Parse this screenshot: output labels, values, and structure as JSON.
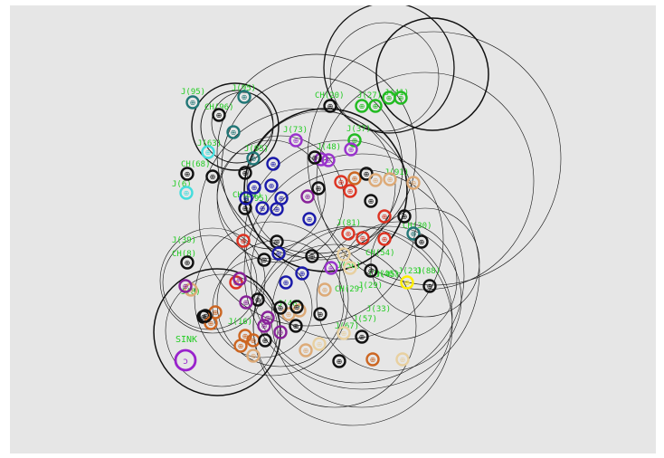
{
  "colors": {
    "background": "#e6e6e6",
    "range": "#111111",
    "label_green": "#22cc22",
    "black": "#111111",
    "green": "#22bb22",
    "teal": "#227777",
    "cyan": "#44dddd",
    "blue": "#1a1aaa",
    "purple": "#882299",
    "violet": "#9933cc",
    "red": "#dd3322",
    "orange": "#cc6622",
    "tan": "#ddaa77",
    "beige": "#e8d0a0",
    "yellow": "#ffee00",
    "sink": "#9922cc"
  },
  "sink": {
    "label": "SINK",
    "glyph": "ↄ"
  },
  "labels": [
    {
      "text": "J(95)"
    },
    {
      "text": "J(95)"
    },
    {
      "text": "CH(96)"
    },
    {
      "text": "J(63)"
    },
    {
      "text": "J(95)"
    },
    {
      "text": "CH(68)"
    },
    {
      "text": "J(6)"
    },
    {
      "text": "J(73)"
    },
    {
      "text": "J(37)"
    },
    {
      "text": "CH(20)"
    },
    {
      "text": "J(27)"
    },
    {
      "text": "J(41)"
    },
    {
      "text": "J(48)"
    },
    {
      "text": "J(81)"
    },
    {
      "text": "J(95)"
    },
    {
      "text": "CH(94)"
    },
    {
      "text": "J(39)"
    },
    {
      "text": "CH(8)"
    },
    {
      "text": "J(8)"
    },
    {
      "text": "J(50)"
    },
    {
      "text": "CH(29)"
    },
    {
      "text": "J(29)"
    },
    {
      "text": "CH(54)"
    },
    {
      "text": "CH(30)"
    },
    {
      "text": "CH(46)"
    },
    {
      "text": "J(91)"
    },
    {
      "text": "J(48)"
    },
    {
      "text": "J(16)"
    },
    {
      "text": "J(67)"
    },
    {
      "text": "J(57)"
    },
    {
      "text": "J(33)"
    },
    {
      "text": "J(45)"
    },
    {
      "text": "J(23)"
    },
    {
      "text": "J(88)"
    }
  ],
  "nodes": [
    {
      "color": "teal",
      "glyph": "⊕"
    },
    {
      "color": "teal",
      "glyph": "⊕"
    },
    {
      "color": "black",
      "glyph": "⊕"
    },
    {
      "color": "teal",
      "glyph": "⊕"
    },
    {
      "color": "cyan",
      "glyph": "⊕"
    },
    {
      "color": "black",
      "glyph": "⊕"
    },
    {
      "color": "cyan",
      "glyph": "⊕"
    },
    {
      "color": "black",
      "glyph": "⊕"
    },
    {
      "color": "green",
      "glyph": "⊕"
    },
    {
      "color": "green",
      "glyph": "⊕"
    },
    {
      "color": "green",
      "glyph": "⊕"
    },
    {
      "color": "green",
      "glyph": "⊕"
    },
    {
      "color": "black",
      "glyph": "⊕"
    },
    {
      "color": "violet",
      "glyph": "⊕"
    },
    {
      "color": "green",
      "glyph": "⊕"
    },
    {
      "color": "violet",
      "glyph": "⊕"
    },
    {
      "color": "violet",
      "glyph": "⊕"
    },
    {
      "color": "violet",
      "glyph": "⊕"
    },
    {
      "color": "black",
      "glyph": "⊕"
    },
    {
      "color": "teal",
      "glyph": "⊕"
    },
    {
      "color": "blue",
      "glyph": "⊕"
    },
    {
      "color": "black",
      "glyph": "⊕"
    },
    {
      "color": "blue",
      "glyph": "⊕"
    },
    {
      "color": "blue",
      "glyph": "⊕"
    },
    {
      "color": "blue",
      "glyph": "⊕"
    },
    {
      "color": "blue",
      "glyph": "⊕"
    },
    {
      "color": "black",
      "glyph": "⊕"
    },
    {
      "color": "blue",
      "glyph": "⊕"
    },
    {
      "color": "blue",
      "glyph": "⊕"
    },
    {
      "color": "purple",
      "glyph": "⊕"
    },
    {
      "color": "black",
      "glyph": "⊕"
    },
    {
      "color": "blue",
      "glyph": "⊕"
    },
    {
      "color": "red",
      "glyph": "⊕"
    },
    {
      "color": "orange",
      "glyph": "⊕"
    },
    {
      "color": "black",
      "glyph": "⊕"
    },
    {
      "color": "tan",
      "glyph": "⊕"
    },
    {
      "color": "tan",
      "glyph": "⊕"
    },
    {
      "color": "tan",
      "glyph": "⊕"
    },
    {
      "color": "red",
      "glyph": "⊕"
    },
    {
      "color": "black",
      "glyph": "⊕"
    },
    {
      "color": "red",
      "glyph": "⊕"
    },
    {
      "color": "black",
      "glyph": "⊕"
    },
    {
      "color": "teal",
      "glyph": "⊕"
    },
    {
      "color": "black",
      "glyph": "⊕"
    },
    {
      "color": "red",
      "glyph": "⊕"
    },
    {
      "color": "red",
      "glyph": "⊕"
    },
    {
      "color": "red",
      "glyph": "⊕"
    },
    {
      "color": "red",
      "glyph": "⊕"
    },
    {
      "color": "black",
      "glyph": "⊕"
    },
    {
      "color": "blue",
      "glyph": "⊕"
    },
    {
      "color": "black",
      "glyph": "⊕"
    },
    {
      "color": "violet",
      "glyph": "⊕"
    },
    {
      "color": "black",
      "glyph": "⊕"
    },
    {
      "color": "red",
      "glyph": "⊕"
    },
    {
      "color": "purple",
      "glyph": "⊕"
    },
    {
      "color": "blue",
      "glyph": "⊕"
    },
    {
      "color": "blue",
      "glyph": "⊕"
    },
    {
      "color": "tan",
      "glyph": "⊕"
    },
    {
      "color": "beige",
      "glyph": "⊕"
    },
    {
      "color": "beige",
      "glyph": "⊕"
    },
    {
      "color": "black",
      "glyph": "⊕"
    },
    {
      "color": "yellow",
      "glyph": "⊕"
    },
    {
      "color": "black",
      "glyph": "⊕"
    },
    {
      "color": "tan",
      "glyph": "⊕"
    },
    {
      "color": "purple",
      "glyph": "⊕"
    },
    {
      "color": "black",
      "glyph": "⊕"
    },
    {
      "color": "orange",
      "glyph": "⊕"
    },
    {
      "color": "black",
      "glyph": "⊕"
    },
    {
      "color": "purple",
      "glyph": "⊕"
    },
    {
      "color": "purple",
      "glyph": "⊕"
    },
    {
      "color": "purple",
      "glyph": "⊕"
    },
    {
      "color": "purple",
      "glyph": "⊕"
    },
    {
      "color": "black",
      "glyph": "⊕"
    },
    {
      "color": "tan",
      "glyph": "⊕"
    },
    {
      "color": "tan",
      "glyph": "⊕"
    },
    {
      "color": "orange",
      "glyph": "⊕"
    },
    {
      "color": "orange",
      "glyph": "⊕"
    },
    {
      "color": "orange",
      "glyph": "⊕"
    },
    {
      "color": "black",
      "glyph": "⊕"
    },
    {
      "color": "tan",
      "glyph": "⊕"
    },
    {
      "color": "beige",
      "glyph": "⊕"
    },
    {
      "color": "beige",
      "glyph": "⊕"
    },
    {
      "color": "black",
      "glyph": "⊕"
    },
    {
      "color": "beige",
      "glyph": "⊕"
    },
    {
      "color": "tan",
      "glyph": "⊕"
    },
    {
      "color": "black",
      "glyph": "⊕"
    },
    {
      "color": "orange",
      "glyph": "⊕"
    },
    {
      "color": "black",
      "glyph": "⊕"
    },
    {
      "color": "black",
      "glyph": "⊕"
    },
    {
      "color": "black",
      "glyph": "⊕"
    },
    {
      "color": "black",
      "glyph": "⊕"
    },
    {
      "color": "black",
      "glyph": "⊕"
    },
    {
      "color": "orange",
      "glyph": "⊕"
    }
  ]
}
